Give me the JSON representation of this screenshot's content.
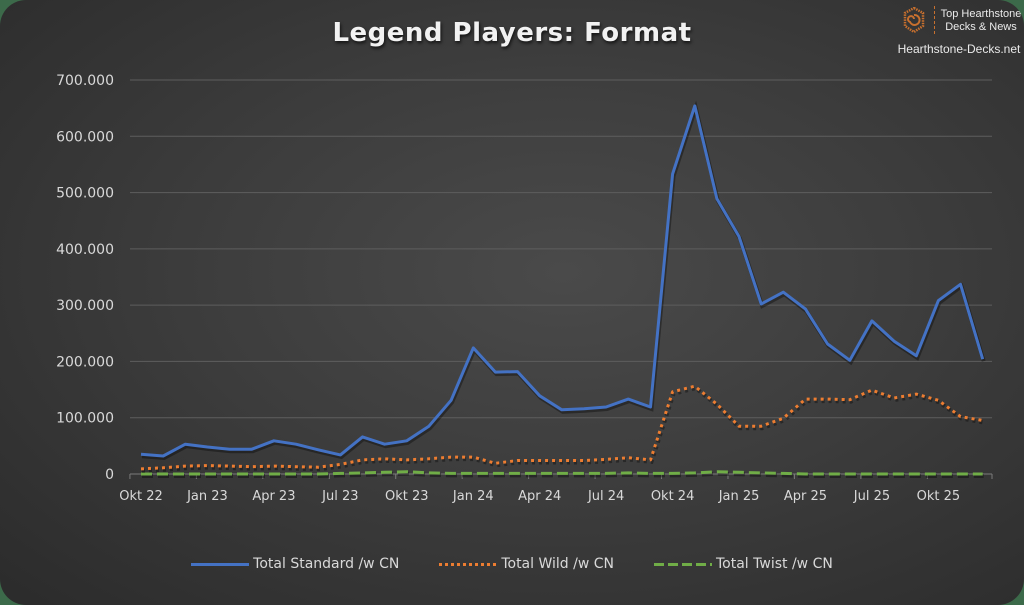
{
  "chart_data": {
    "type": "line",
    "title": "Legend Players: Format",
    "xlabel": "",
    "ylabel": "",
    "ylim": [
      0,
      700000
    ],
    "yticks": [
      "0",
      "100.000",
      "200.000",
      "300.000",
      "400.000",
      "500.000",
      "600.000",
      "700.000"
    ],
    "xtick_labels": [
      "Okt 22",
      "Jan 23",
      "Apr 23",
      "Jul 23",
      "Okt 23",
      "Jan 24",
      "Apr 24",
      "Jul 24",
      "Okt 24",
      "Jan 25",
      "Apr 25",
      "Jul 25",
      "Okt 25"
    ],
    "grid": true,
    "legend_position": "bottom",
    "x": [
      "Okt 22",
      "Nov 22",
      "Dez 22",
      "Jan 23",
      "Feb 23",
      "Mär 23",
      "Apr 23",
      "Mai 23",
      "Jun 23",
      "Jul 23",
      "Aug 23",
      "Sep 23",
      "Okt 23",
      "Nov 23",
      "Dez 23",
      "Jan 24",
      "Feb 24",
      "Mär 24",
      "Apr 24",
      "Mai 24",
      "Jun 24",
      "Jul 24",
      "Aug 24",
      "Sep 24",
      "Okt 24",
      "Nov 24",
      "Dez 24",
      "Jan 25",
      "Feb 25",
      "Mär 25",
      "Apr 25",
      "Mai 25",
      "Jun 25",
      "Jul 25",
      "Aug 25",
      "Sep 25",
      "Okt 25",
      "Nov 25",
      "Dez 25"
    ],
    "series": [
      {
        "name": "Total Standard /w CN",
        "color": "#4472c4",
        "style": "solid",
        "values": [
          35000,
          32000,
          53000,
          48000,
          44000,
          44000,
          59000,
          53000,
          43000,
          34000,
          66000,
          53000,
          59000,
          85000,
          131000,
          224000,
          181000,
          182000,
          139000,
          114000,
          116000,
          119000,
          133000,
          119000,
          533000,
          654000,
          489000,
          422000,
          302000,
          323000,
          293000,
          231000,
          202000,
          272000,
          236000,
          210000,
          308000,
          337000,
          204000
        ]
      },
      {
        "name": "Total Wild /w CN",
        "color": "#ed7d31",
        "style": "dotted",
        "values": [
          9000,
          11000,
          14000,
          15000,
          14000,
          13000,
          14000,
          13000,
          12000,
          17000,
          25000,
          27000,
          25000,
          27000,
          30000,
          30000,
          19000,
          24000,
          24000,
          24000,
          24000,
          26000,
          29000,
          25000,
          146000,
          156000,
          124000,
          85000,
          85000,
          99000,
          133000,
          133000,
          132000,
          149000,
          135000,
          142000,
          131000,
          102000,
          95000
        ]
      },
      {
        "name": "Total Twist /w CN",
        "color": "#70ad47",
        "style": "dashed",
        "values": [
          0,
          0,
          0,
          0,
          0,
          0,
          0,
          0,
          0,
          1000,
          2000,
          3000,
          4000,
          2000,
          1000,
          1000,
          1000,
          1000,
          1000,
          1000,
          1000,
          1000,
          2000,
          1000,
          1000,
          2000,
          4000,
          3000,
          2000,
          1000,
          0,
          0,
          0,
          0,
          0,
          0,
          0,
          0,
          0
        ]
      }
    ]
  },
  "header": {
    "title": "Legend Players: Format"
  },
  "brand": {
    "line1": "Top Hearthstone",
    "line2": "Decks & News",
    "site": "Hearthstone-Decks.net",
    "logo_icon": "hearthstone-swirl-icon",
    "accent": "#c8702e"
  },
  "legend": [
    {
      "label": "Total Standard /w CN",
      "color": "#4472c4"
    },
    {
      "label": "Total Wild /w CN",
      "color": "#ed7d31"
    },
    {
      "label": "Total Twist /w CN",
      "color": "#70ad47"
    }
  ]
}
